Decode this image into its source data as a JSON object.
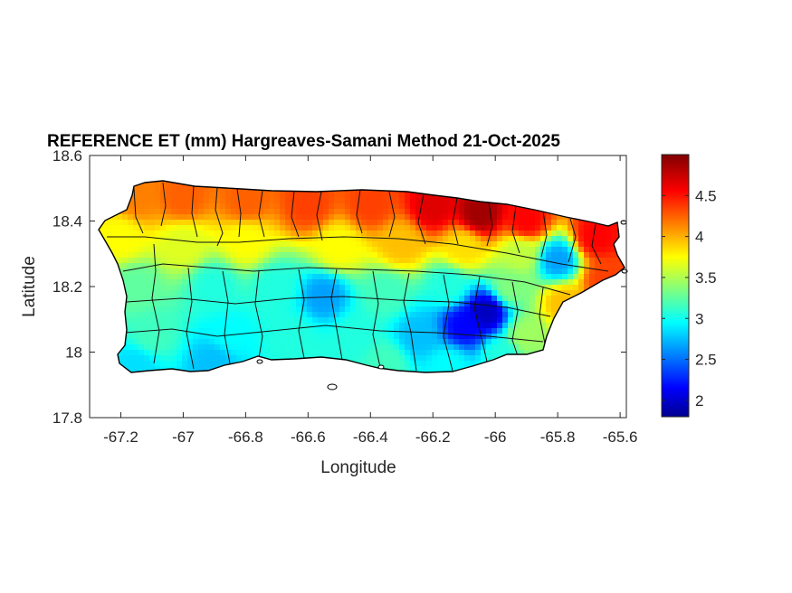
{
  "chart_data": {
    "type": "heatmap",
    "title": "REFERENCE ET (mm) Hargreaves-Samani Method  21-Oct-2025",
    "xlabel": "Longitude",
    "ylabel": "Latitude",
    "xlim": [
      -67.3,
      -65.58
    ],
    "ylim": [
      17.8,
      18.6
    ],
    "x_ticks": [
      -67.2,
      -67,
      -66.8,
      -66.6,
      -66.4,
      -66.2,
      -66,
      -65.8,
      -65.6
    ],
    "x_tick_labels": [
      "-67.2",
      "-67",
      "-66.8",
      "-66.6",
      "-66.4",
      "-66.2",
      "-66",
      "-65.8",
      "-65.6"
    ],
    "y_ticks": [
      17.8,
      18,
      18.2,
      18.4,
      18.6
    ],
    "y_tick_labels": [
      "17.8",
      "18",
      "18.2",
      "18.4",
      "18.6"
    ],
    "colormap": "jet",
    "color_limits": [
      1.8,
      5.0
    ],
    "colorbar_ticks": [
      2,
      2.5,
      3,
      3.5,
      4,
      4.5
    ],
    "colorbar_tick_labels": [
      "2",
      "2.5",
      "3",
      "3.5",
      "4",
      "4.5"
    ],
    "grid": false,
    "colorbar_position": "right",
    "regional_values": [
      {
        "lon": -67.15,
        "lat": 18.47,
        "value": 4.2
      },
      {
        "lon": -67.0,
        "lat": 18.47,
        "value": 4.3
      },
      {
        "lon": -66.8,
        "lat": 18.46,
        "value": 4.3
      },
      {
        "lon": -66.6,
        "lat": 18.45,
        "value": 4.4
      },
      {
        "lon": -66.4,
        "lat": 18.45,
        "value": 4.4
      },
      {
        "lon": -66.2,
        "lat": 18.44,
        "value": 4.7
      },
      {
        "lon": -66.05,
        "lat": 18.42,
        "value": 4.9
      },
      {
        "lon": -65.9,
        "lat": 18.4,
        "value": 4.6
      },
      {
        "lon": -65.68,
        "lat": 18.35,
        "value": 4.6
      },
      {
        "lon": -65.65,
        "lat": 18.22,
        "value": 4.4
      },
      {
        "lon": -67.2,
        "lat": 18.35,
        "value": 3.8
      },
      {
        "lon": -67.0,
        "lat": 18.33,
        "value": 3.7
      },
      {
        "lon": -66.8,
        "lat": 18.34,
        "value": 3.8
      },
      {
        "lon": -66.5,
        "lat": 18.32,
        "value": 3.8
      },
      {
        "lon": -66.3,
        "lat": 18.33,
        "value": 4.0
      },
      {
        "lon": -66.1,
        "lat": 18.32,
        "value": 3.9
      },
      {
        "lon": -65.92,
        "lat": 18.3,
        "value": 3.6
      },
      {
        "lon": -65.8,
        "lat": 18.28,
        "value": 2.7
      },
      {
        "lon": -67.15,
        "lat": 18.2,
        "value": 3.3
      },
      {
        "lon": -66.9,
        "lat": 18.2,
        "value": 3.1
      },
      {
        "lon": -66.7,
        "lat": 18.2,
        "value": 3.1
      },
      {
        "lon": -66.55,
        "lat": 18.17,
        "value": 2.7
      },
      {
        "lon": -66.35,
        "lat": 18.18,
        "value": 3.2
      },
      {
        "lon": -66.15,
        "lat": 18.2,
        "value": 3.1
      },
      {
        "lon": -65.95,
        "lat": 18.2,
        "value": 3.4
      },
      {
        "lon": -65.78,
        "lat": 18.15,
        "value": 4.0
      },
      {
        "lon": -67.1,
        "lat": 18.05,
        "value": 3.2
      },
      {
        "lon": -66.85,
        "lat": 18.05,
        "value": 3.0
      },
      {
        "lon": -66.65,
        "lat": 18.05,
        "value": 3.1
      },
      {
        "lon": -66.45,
        "lat": 18.05,
        "value": 3.1
      },
      {
        "lon": -66.25,
        "lat": 18.05,
        "value": 2.8
      },
      {
        "lon": -66.1,
        "lat": 18.08,
        "value": 2.2
      },
      {
        "lon": -66.03,
        "lat": 18.12,
        "value": 2.0
      },
      {
        "lon": -65.9,
        "lat": 18.05,
        "value": 3.5
      },
      {
        "lon": -67.15,
        "lat": 17.96,
        "value": 2.9
      },
      {
        "lon": -66.9,
        "lat": 17.97,
        "value": 2.8
      },
      {
        "lon": -66.6,
        "lat": 17.98,
        "value": 3.1
      },
      {
        "lon": -66.35,
        "lat": 17.97,
        "value": 3.2
      },
      {
        "lon": -66.15,
        "lat": 17.96,
        "value": 3.0
      },
      {
        "lon": -65.98,
        "lat": 17.99,
        "value": 3.1
      }
    ]
  }
}
